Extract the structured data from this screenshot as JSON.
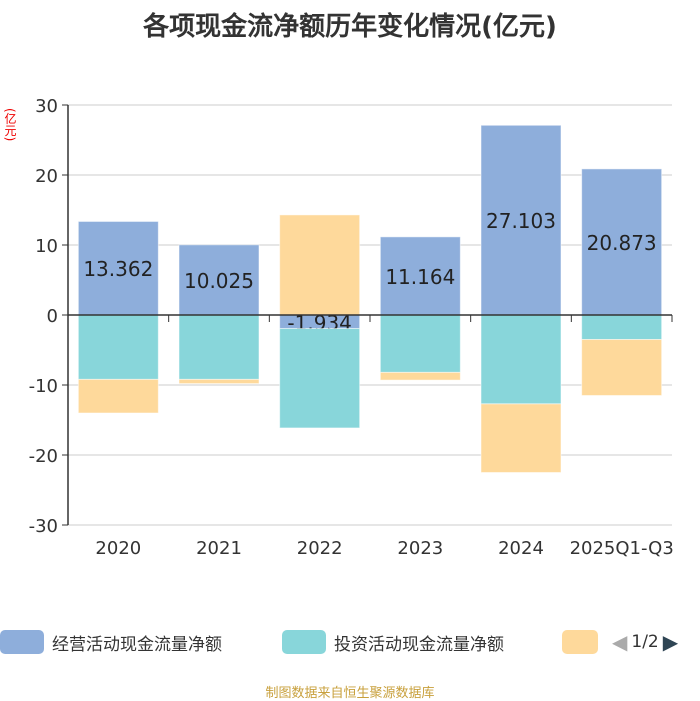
{
  "chart_data": {
    "type": "bar",
    "stacked": true,
    "title": "各项现金流净额历年变化情况(亿元)",
    "ylabel": "(亿元)",
    "categories": [
      "2020",
      "2021",
      "2022",
      "2023",
      "2024",
      "2025Q1-Q3"
    ],
    "ylim": [
      -30,
      30
    ],
    "yticks": [
      30,
      20,
      10,
      0,
      -10,
      -20,
      -30
    ],
    "grid": true,
    "legend_placement": "bottom",
    "series": [
      {
        "name": "经营活动现金流量净额",
        "color": "#8eaedb",
        "values": [
          13.362,
          10.025,
          -1.934,
          11.164,
          27.103,
          20.873
        ],
        "labels": [
          "13.362",
          "10.025",
          "-1.934",
          "11.164",
          "27.103",
          "20.873"
        ]
      },
      {
        "name": "投资活动现金流量净额",
        "color": "#88d6da",
        "values": [
          -9.2,
          -9.2,
          -14.2,
          -8.2,
          -12.7,
          -3.5
        ]
      },
      {
        "name": "",
        "color": "#fed99b",
        "values": [
          -4.8,
          -0.6,
          14.3,
          -1.1,
          -9.8,
          -8.0
        ]
      }
    ]
  },
  "legend": {
    "page": "1/2"
  },
  "source": "制图数据来自恒生聚源数据库"
}
